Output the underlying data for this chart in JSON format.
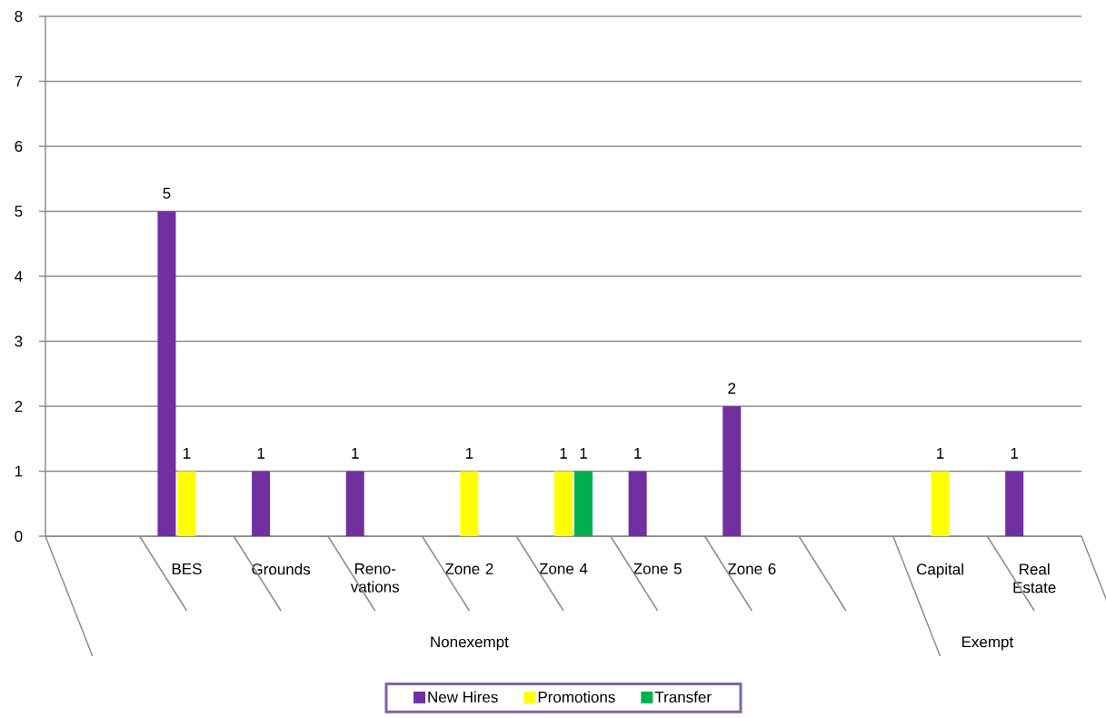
{
  "chart_data": {
    "type": "bar",
    "categories": [
      null,
      "BES",
      "Grounds",
      "Reno-vations",
      "Zone 2",
      "Zone 4",
      "Zone 5",
      "Zone 6",
      null,
      "Capital",
      "Real Estate"
    ],
    "series": [
      {
        "name": "New Hires",
        "color": "#7030a0",
        "values": [
          null,
          5,
          1,
          1,
          null,
          null,
          1,
          2,
          null,
          null,
          1
        ]
      },
      {
        "name": "Promotions",
        "color": "#ffff00",
        "values": [
          null,
          1,
          null,
          null,
          1,
          1,
          null,
          null,
          null,
          1,
          null
        ]
      },
      {
        "name": "Transfer",
        "color": "#00b050",
        "values": [
          null,
          null,
          null,
          null,
          null,
          1,
          null,
          null,
          null,
          null,
          null
        ]
      }
    ],
    "ylim": [
      0,
      8
    ],
    "yticks": [
      0,
      1,
      2,
      3,
      4,
      5,
      6,
      7,
      8
    ],
    "grid": "y",
    "legend": "bottom",
    "data_labels": true,
    "annotations": [
      "Nonexempt",
      "Exempt"
    ]
  }
}
